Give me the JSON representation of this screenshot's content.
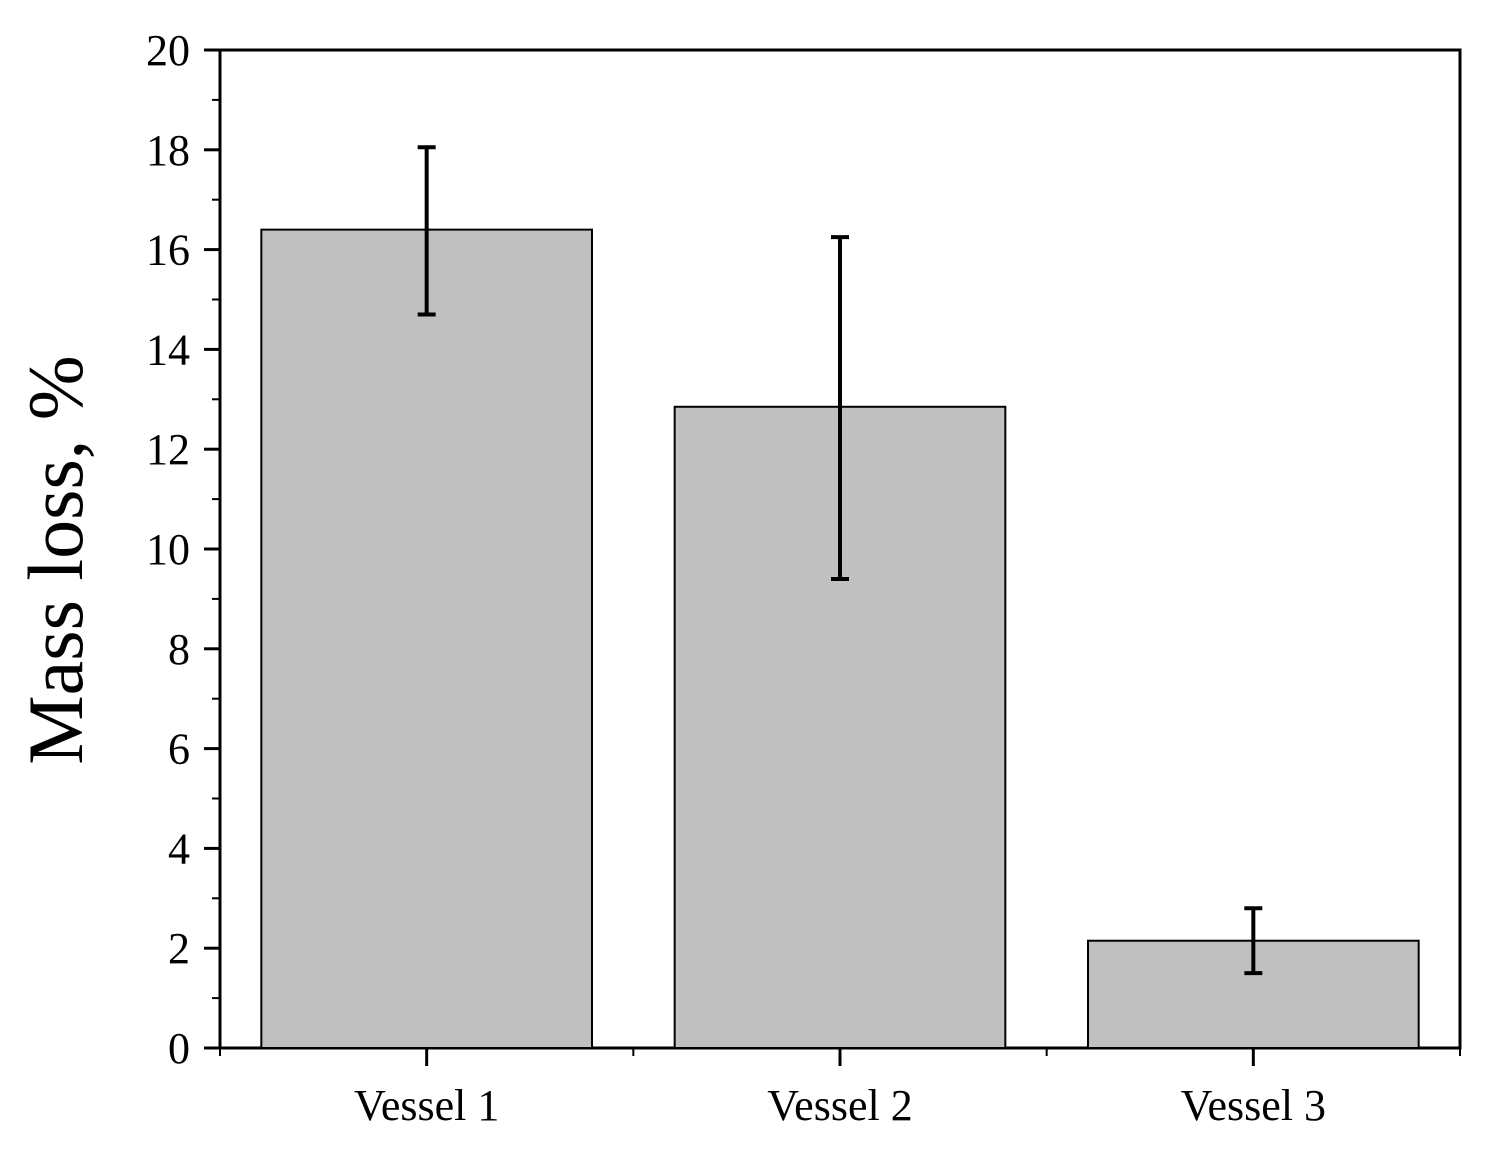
{
  "chart_data": {
    "type": "bar",
    "title": "",
    "xlabel": "",
    "ylabel": "Mass loss, %",
    "categories": [
      "Vessel 1",
      "Vessel 2",
      "Vessel 3"
    ],
    "values": [
      16.4,
      12.85,
      2.15
    ],
    "error_low": [
      14.7,
      9.4,
      1.5
    ],
    "error_high": [
      18.05,
      16.25,
      2.8
    ],
    "ylim": [
      0,
      20
    ],
    "yticks": [
      0,
      2,
      4,
      6,
      8,
      10,
      12,
      14,
      16,
      18,
      20
    ],
    "grid": false,
    "legend": "none",
    "colors": {
      "bar_fill": "#c0c0c0",
      "bar_stroke": "#000000",
      "error_bar": "#000000",
      "axis": "#000000"
    }
  }
}
